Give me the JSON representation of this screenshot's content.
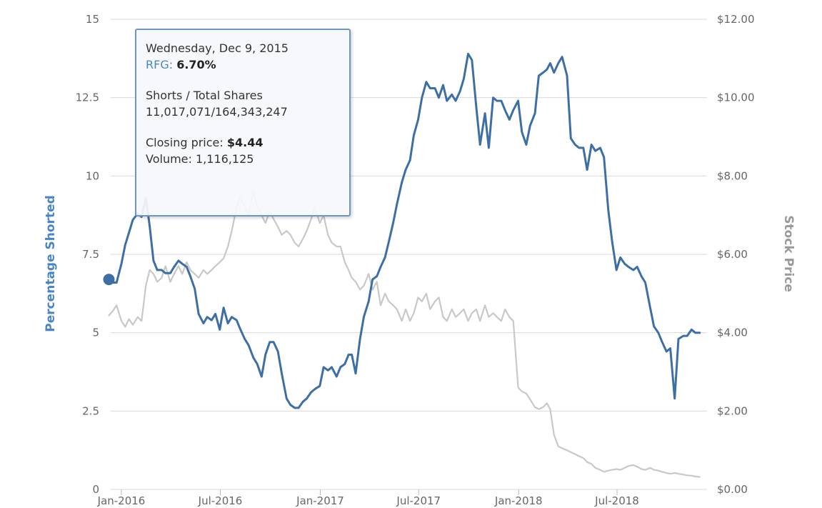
{
  "chart_data": {
    "type": "line",
    "ylabel": "Percentage Shorted",
    "y2label": "Stock Price",
    "ylim": [
      0,
      15
    ],
    "y2lim": [
      0,
      12
    ],
    "yticks": [
      "15",
      "12.5",
      "10",
      "7.5",
      "5",
      "2.5",
      "0"
    ],
    "y2ticks": [
      "$12.00",
      "$10.00",
      "$8.00",
      "$6.00",
      "$4.00",
      "$2.00",
      "$0.00"
    ],
    "xticks": [
      "Jan-2016",
      "Jul-2016",
      "Jan-2017",
      "Jul-2017",
      "Jan-2018",
      "Jul-2018"
    ],
    "grid": true,
    "colors": {
      "short": "#3d6fa6",
      "price": "#c8c8c8",
      "grid": "#d9d9d9",
      "left_axis": "#4a86c5",
      "right_axis": "#999999"
    },
    "series": [
      {
        "key": "short",
        "axis": "left",
        "x": [
          "2015-12-09",
          "2015-12-16",
          "2015-12-23",
          "2016-01-01",
          "2016-01-08",
          "2016-01-15",
          "2016-01-22",
          "2016-01-31",
          "2016-02-07",
          "2016-02-15",
          "2016-02-22",
          "2016-02-29",
          "2016-03-07",
          "2016-03-15",
          "2016-03-22",
          "2016-03-31",
          "2016-04-07",
          "2016-04-15",
          "2016-04-22",
          "2016-04-30",
          "2016-05-07",
          "2016-05-15",
          "2016-05-22",
          "2016-05-31",
          "2016-06-07",
          "2016-06-15",
          "2016-06-22",
          "2016-06-30",
          "2016-07-07",
          "2016-07-15",
          "2016-07-22",
          "2016-07-31",
          "2016-08-07",
          "2016-08-15",
          "2016-08-22",
          "2016-08-31",
          "2016-09-07",
          "2016-09-15",
          "2016-09-22",
          "2016-09-30",
          "2016-10-07",
          "2016-10-15",
          "2016-10-22",
          "2016-10-31",
          "2016-11-07",
          "2016-11-15",
          "2016-11-22",
          "2016-11-30",
          "2016-12-07",
          "2016-12-15",
          "2016-12-22",
          "2016-12-31",
          "2017-01-07",
          "2017-01-15",
          "2017-01-22",
          "2017-01-31",
          "2017-02-07",
          "2017-02-15",
          "2017-02-22",
          "2017-02-28",
          "2017-03-07",
          "2017-03-15",
          "2017-03-22",
          "2017-03-31",
          "2017-04-07",
          "2017-04-15",
          "2017-04-22",
          "2017-04-30",
          "2017-05-07",
          "2017-05-15",
          "2017-05-22",
          "2017-05-31",
          "2017-06-07",
          "2017-06-15",
          "2017-06-22",
          "2017-06-30",
          "2017-07-07",
          "2017-07-15",
          "2017-07-22",
          "2017-07-31",
          "2017-08-07",
          "2017-08-15",
          "2017-08-22",
          "2017-08-31",
          "2017-09-07",
          "2017-09-15",
          "2017-09-22",
          "2017-09-30",
          "2017-10-07",
          "2017-10-15",
          "2017-10-22",
          "2017-10-31",
          "2017-11-07",
          "2017-11-15",
          "2017-11-22",
          "2017-11-30",
          "2017-12-07",
          "2017-12-15",
          "2017-12-22",
          "2017-12-31",
          "2018-01-07",
          "2018-01-15",
          "2018-01-22",
          "2018-01-31",
          "2018-02-07",
          "2018-02-15",
          "2018-02-22",
          "2018-02-28",
          "2018-03-07",
          "2018-03-15",
          "2018-03-22",
          "2018-03-31",
          "2018-04-07",
          "2018-04-15",
          "2018-04-22",
          "2018-04-30",
          "2018-05-07",
          "2018-05-15",
          "2018-05-22",
          "2018-05-31",
          "2018-06-07",
          "2018-06-15",
          "2018-06-22",
          "2018-06-30",
          "2018-07-07",
          "2018-07-15",
          "2018-07-22",
          "2018-07-31",
          "2018-08-07",
          "2018-08-15",
          "2018-08-22",
          "2018-08-31",
          "2018-09-07",
          "2018-09-15",
          "2018-09-22",
          "2018-09-30",
          "2018-10-07",
          "2018-10-15",
          "2018-10-22",
          "2018-10-31",
          "2018-11-07",
          "2018-11-15",
          "2018-11-22",
          "2018-11-30"
        ],
        "values": [
          6.7,
          6.6,
          6.6,
          7.2,
          7.8,
          8.2,
          8.6,
          8.8,
          8.7,
          9.3,
          8.4,
          7.3,
          7.0,
          7.0,
          6.9,
          6.9,
          7.1,
          7.3,
          7.2,
          7.1,
          6.8,
          6.4,
          5.6,
          5.3,
          5.5,
          5.4,
          5.6,
          5.1,
          5.8,
          5.3,
          5.5,
          5.4,
          5.1,
          4.8,
          4.6,
          4.2,
          4.0,
          3.6,
          4.3,
          4.7,
          4.7,
          4.4,
          3.7,
          2.9,
          2.7,
          2.6,
          2.6,
          2.8,
          2.9,
          3.1,
          3.2,
          3.3,
          3.9,
          3.8,
          3.9,
          3.6,
          3.9,
          4.0,
          4.3,
          4.3,
          3.7,
          4.8,
          5.5,
          6.0,
          6.7,
          6.8,
          7.1,
          7.4,
          7.9,
          8.5,
          9.1,
          9.8,
          10.2,
          10.5,
          11.3,
          11.8,
          12.5,
          13.0,
          12.8,
          12.8,
          12.5,
          12.9,
          12.4,
          12.6,
          12.4,
          12.7,
          13.1,
          13.9,
          13.7,
          12.2,
          11.0,
          12.0,
          10.9,
          12.5,
          12.4,
          12.4,
          12.1,
          11.8,
          12.1,
          12.4,
          11.4,
          11.0,
          11.6,
          12.0,
          13.2,
          13.3,
          13.4,
          13.6,
          13.3,
          13.6,
          13.8,
          13.2,
          11.2,
          11.0,
          10.9,
          10.9,
          10.2,
          11.0,
          10.8,
          10.9,
          10.6,
          8.9,
          7.9,
          7.0,
          7.4,
          7.2,
          7.1,
          7.0,
          7.1,
          6.8,
          6.6,
          5.8,
          5.2,
          5.0,
          4.7,
          4.4,
          4.5,
          2.9,
          4.8,
          4.9,
          4.9,
          5.1,
          5.0,
          5.0
        ]
      },
      {
        "key": "price",
        "axis": "right",
        "x": [
          "2015-12-09",
          "2015-12-16",
          "2015-12-23",
          "2016-01-01",
          "2016-01-08",
          "2016-01-15",
          "2016-01-22",
          "2016-01-31",
          "2016-02-07",
          "2016-02-15",
          "2016-02-22",
          "2016-02-29",
          "2016-03-07",
          "2016-03-15",
          "2016-03-22",
          "2016-03-31",
          "2016-04-07",
          "2016-04-15",
          "2016-04-22",
          "2016-04-30",
          "2016-05-07",
          "2016-05-15",
          "2016-05-22",
          "2016-05-31",
          "2016-06-07",
          "2016-06-15",
          "2016-06-22",
          "2016-06-30",
          "2016-07-07",
          "2016-07-15",
          "2016-07-22",
          "2016-07-31",
          "2016-08-07",
          "2016-08-15",
          "2016-08-22",
          "2016-08-31",
          "2016-09-07",
          "2016-09-15",
          "2016-09-22",
          "2016-09-30",
          "2016-10-07",
          "2016-10-15",
          "2016-10-22",
          "2016-10-31",
          "2016-11-07",
          "2016-11-15",
          "2016-11-22",
          "2016-11-30",
          "2016-12-07",
          "2016-12-15",
          "2016-12-22",
          "2016-12-31",
          "2017-01-07",
          "2017-01-15",
          "2017-01-22",
          "2017-01-31",
          "2017-02-07",
          "2017-02-15",
          "2017-02-22",
          "2017-02-28",
          "2017-03-07",
          "2017-03-15",
          "2017-03-22",
          "2017-03-31",
          "2017-04-07",
          "2017-04-15",
          "2017-04-22",
          "2017-04-30",
          "2017-05-07",
          "2017-05-15",
          "2017-05-22",
          "2017-05-31",
          "2017-06-07",
          "2017-06-15",
          "2017-06-22",
          "2017-06-30",
          "2017-07-07",
          "2017-07-15",
          "2017-07-22",
          "2017-07-31",
          "2017-08-07",
          "2017-08-15",
          "2017-08-22",
          "2017-08-31",
          "2017-09-07",
          "2017-09-15",
          "2017-09-22",
          "2017-09-30",
          "2017-10-07",
          "2017-10-15",
          "2017-10-22",
          "2017-10-31",
          "2017-11-07",
          "2017-11-15",
          "2017-11-22",
          "2017-11-30",
          "2017-12-07",
          "2017-12-15",
          "2017-12-22",
          "2017-12-31",
          "2018-01-07",
          "2018-01-15",
          "2018-01-22",
          "2018-01-31",
          "2018-02-07",
          "2018-02-15",
          "2018-02-22",
          "2018-02-28",
          "2018-03-07",
          "2018-03-15",
          "2018-03-22",
          "2018-03-31",
          "2018-04-07",
          "2018-04-15",
          "2018-04-22",
          "2018-04-30",
          "2018-05-07",
          "2018-05-15",
          "2018-05-22",
          "2018-05-31",
          "2018-06-07",
          "2018-06-15",
          "2018-06-22",
          "2018-06-30",
          "2018-07-07",
          "2018-07-15",
          "2018-07-22",
          "2018-07-31",
          "2018-08-07",
          "2018-08-15",
          "2018-08-22",
          "2018-08-31",
          "2018-09-07",
          "2018-09-15",
          "2018-09-22",
          "2018-09-30",
          "2018-10-07",
          "2018-10-15",
          "2018-10-22",
          "2018-10-31",
          "2018-11-07",
          "2018-11-15",
          "2018-11-22",
          "2018-11-30"
        ],
        "values": [
          4.44,
          4.55,
          4.7,
          4.3,
          4.15,
          4.35,
          4.2,
          4.4,
          4.3,
          5.2,
          5.6,
          5.5,
          5.3,
          5.4,
          5.7,
          5.3,
          5.5,
          5.7,
          5.5,
          5.8,
          5.6,
          5.5,
          5.4,
          5.6,
          5.5,
          5.6,
          5.7,
          5.8,
          5.9,
          6.2,
          6.6,
          7.2,
          7.5,
          7.2,
          7.0,
          7.6,
          7.2,
          7.0,
          6.8,
          7.1,
          6.9,
          6.7,
          6.5,
          6.6,
          6.5,
          6.3,
          6.2,
          6.4,
          6.6,
          6.9,
          7.2,
          6.8,
          7.0,
          6.5,
          6.3,
          6.2,
          6.2,
          5.8,
          5.6,
          5.4,
          5.3,
          5.1,
          5.2,
          5.5,
          5.1,
          5.3,
          4.7,
          5.0,
          4.8,
          4.7,
          4.6,
          4.3,
          4.6,
          4.3,
          4.5,
          4.9,
          4.8,
          5.0,
          4.6,
          4.8,
          4.9,
          4.4,
          4.3,
          4.6,
          4.4,
          4.5,
          4.6,
          4.3,
          4.5,
          4.6,
          4.3,
          4.7,
          4.4,
          4.5,
          4.4,
          4.3,
          4.6,
          4.4,
          4.3,
          2.6,
          2.5,
          2.45,
          2.3,
          2.1,
          2.05,
          2.1,
          2.2,
          2.05,
          1.4,
          1.1,
          1.05,
          1.0,
          0.95,
          0.9,
          0.85,
          0.8,
          0.7,
          0.65,
          0.55,
          0.5,
          0.45,
          0.48,
          0.5,
          0.52,
          0.5,
          0.55,
          0.6,
          0.62,
          0.58,
          0.52,
          0.5,
          0.55,
          0.5,
          0.48,
          0.45,
          0.42,
          0.4,
          0.42,
          0.4,
          0.38,
          0.36,
          0.35,
          0.33,
          0.32
        ]
      }
    ],
    "marker": {
      "date": "2015-12-09",
      "value": 6.7
    },
    "tooltip": {
      "date": "Wednesday, Dec 9, 2015",
      "ticker": "RFG:",
      "percent": "6.70%",
      "shares_label": "Shorts / Total Shares",
      "shares_value": "11,017,071/164,343,247",
      "price_label": "Closing price:",
      "price_value": "$4.44",
      "volume_label": "Volume:",
      "volume_value": "1,116,125"
    }
  }
}
